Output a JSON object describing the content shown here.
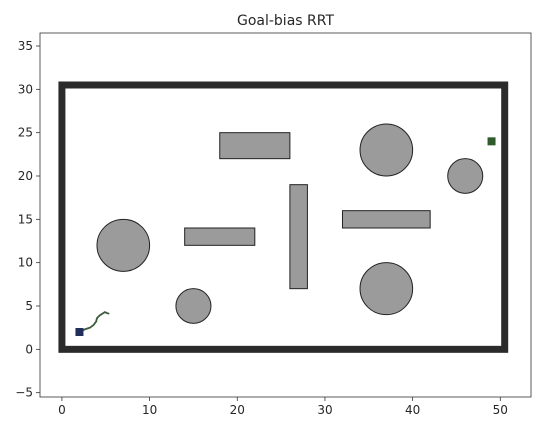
{
  "chart_data": {
    "type": "scatter",
    "title": "Goal-bias RRT",
    "xlabel": "",
    "ylabel": "",
    "xlim": [
      -2.5,
      53.5
    ],
    "ylim": [
      -5.5,
      36.5
    ],
    "xticks": [
      0,
      10,
      20,
      30,
      40,
      50
    ],
    "yticks": [
      -5,
      0,
      5,
      10,
      15,
      20,
      25,
      30,
      35
    ],
    "grid": false,
    "boundary": {
      "x": [
        0,
        50.5
      ],
      "y": [
        0,
        30.5
      ],
      "color": "#2b2b2b"
    },
    "obstacles": {
      "fill": "#9b9b9b",
      "edge": "#222222",
      "rectangles": [
        {
          "x": 18,
          "y": 22,
          "w": 8,
          "h": 3
        },
        {
          "x": 26,
          "y": 7,
          "w": 2,
          "h": 12
        },
        {
          "x": 14,
          "y": 12,
          "w": 8,
          "h": 2
        },
        {
          "x": 32,
          "y": 14,
          "w": 10,
          "h": 2
        }
      ],
      "circles": [
        {
          "cx": 37,
          "cy": 23,
          "r": 3
        },
        {
          "cx": 46,
          "cy": 20,
          "r": 2
        },
        {
          "cx": 7,
          "cy": 12,
          "r": 3
        },
        {
          "cx": 15,
          "cy": 5,
          "r": 2
        },
        {
          "cx": 37,
          "cy": 7,
          "r": 3
        }
      ]
    },
    "start": {
      "x": 2,
      "y": 2,
      "color": "#1f2f5a"
    },
    "goal": {
      "x": 49,
      "y": 24,
      "color": "#2f5a2a"
    },
    "path": {
      "color": "#3a5a3a",
      "x": [
        2,
        2.6,
        3.2,
        3.6,
        3.9,
        4.0,
        4.3,
        4.6,
        4.9,
        5.1,
        5.4
      ],
      "y": [
        2,
        2.3,
        2.5,
        2.8,
        3.2,
        3.6,
        3.9,
        4.1,
        4.3,
        4.2,
        4.1
      ]
    }
  }
}
